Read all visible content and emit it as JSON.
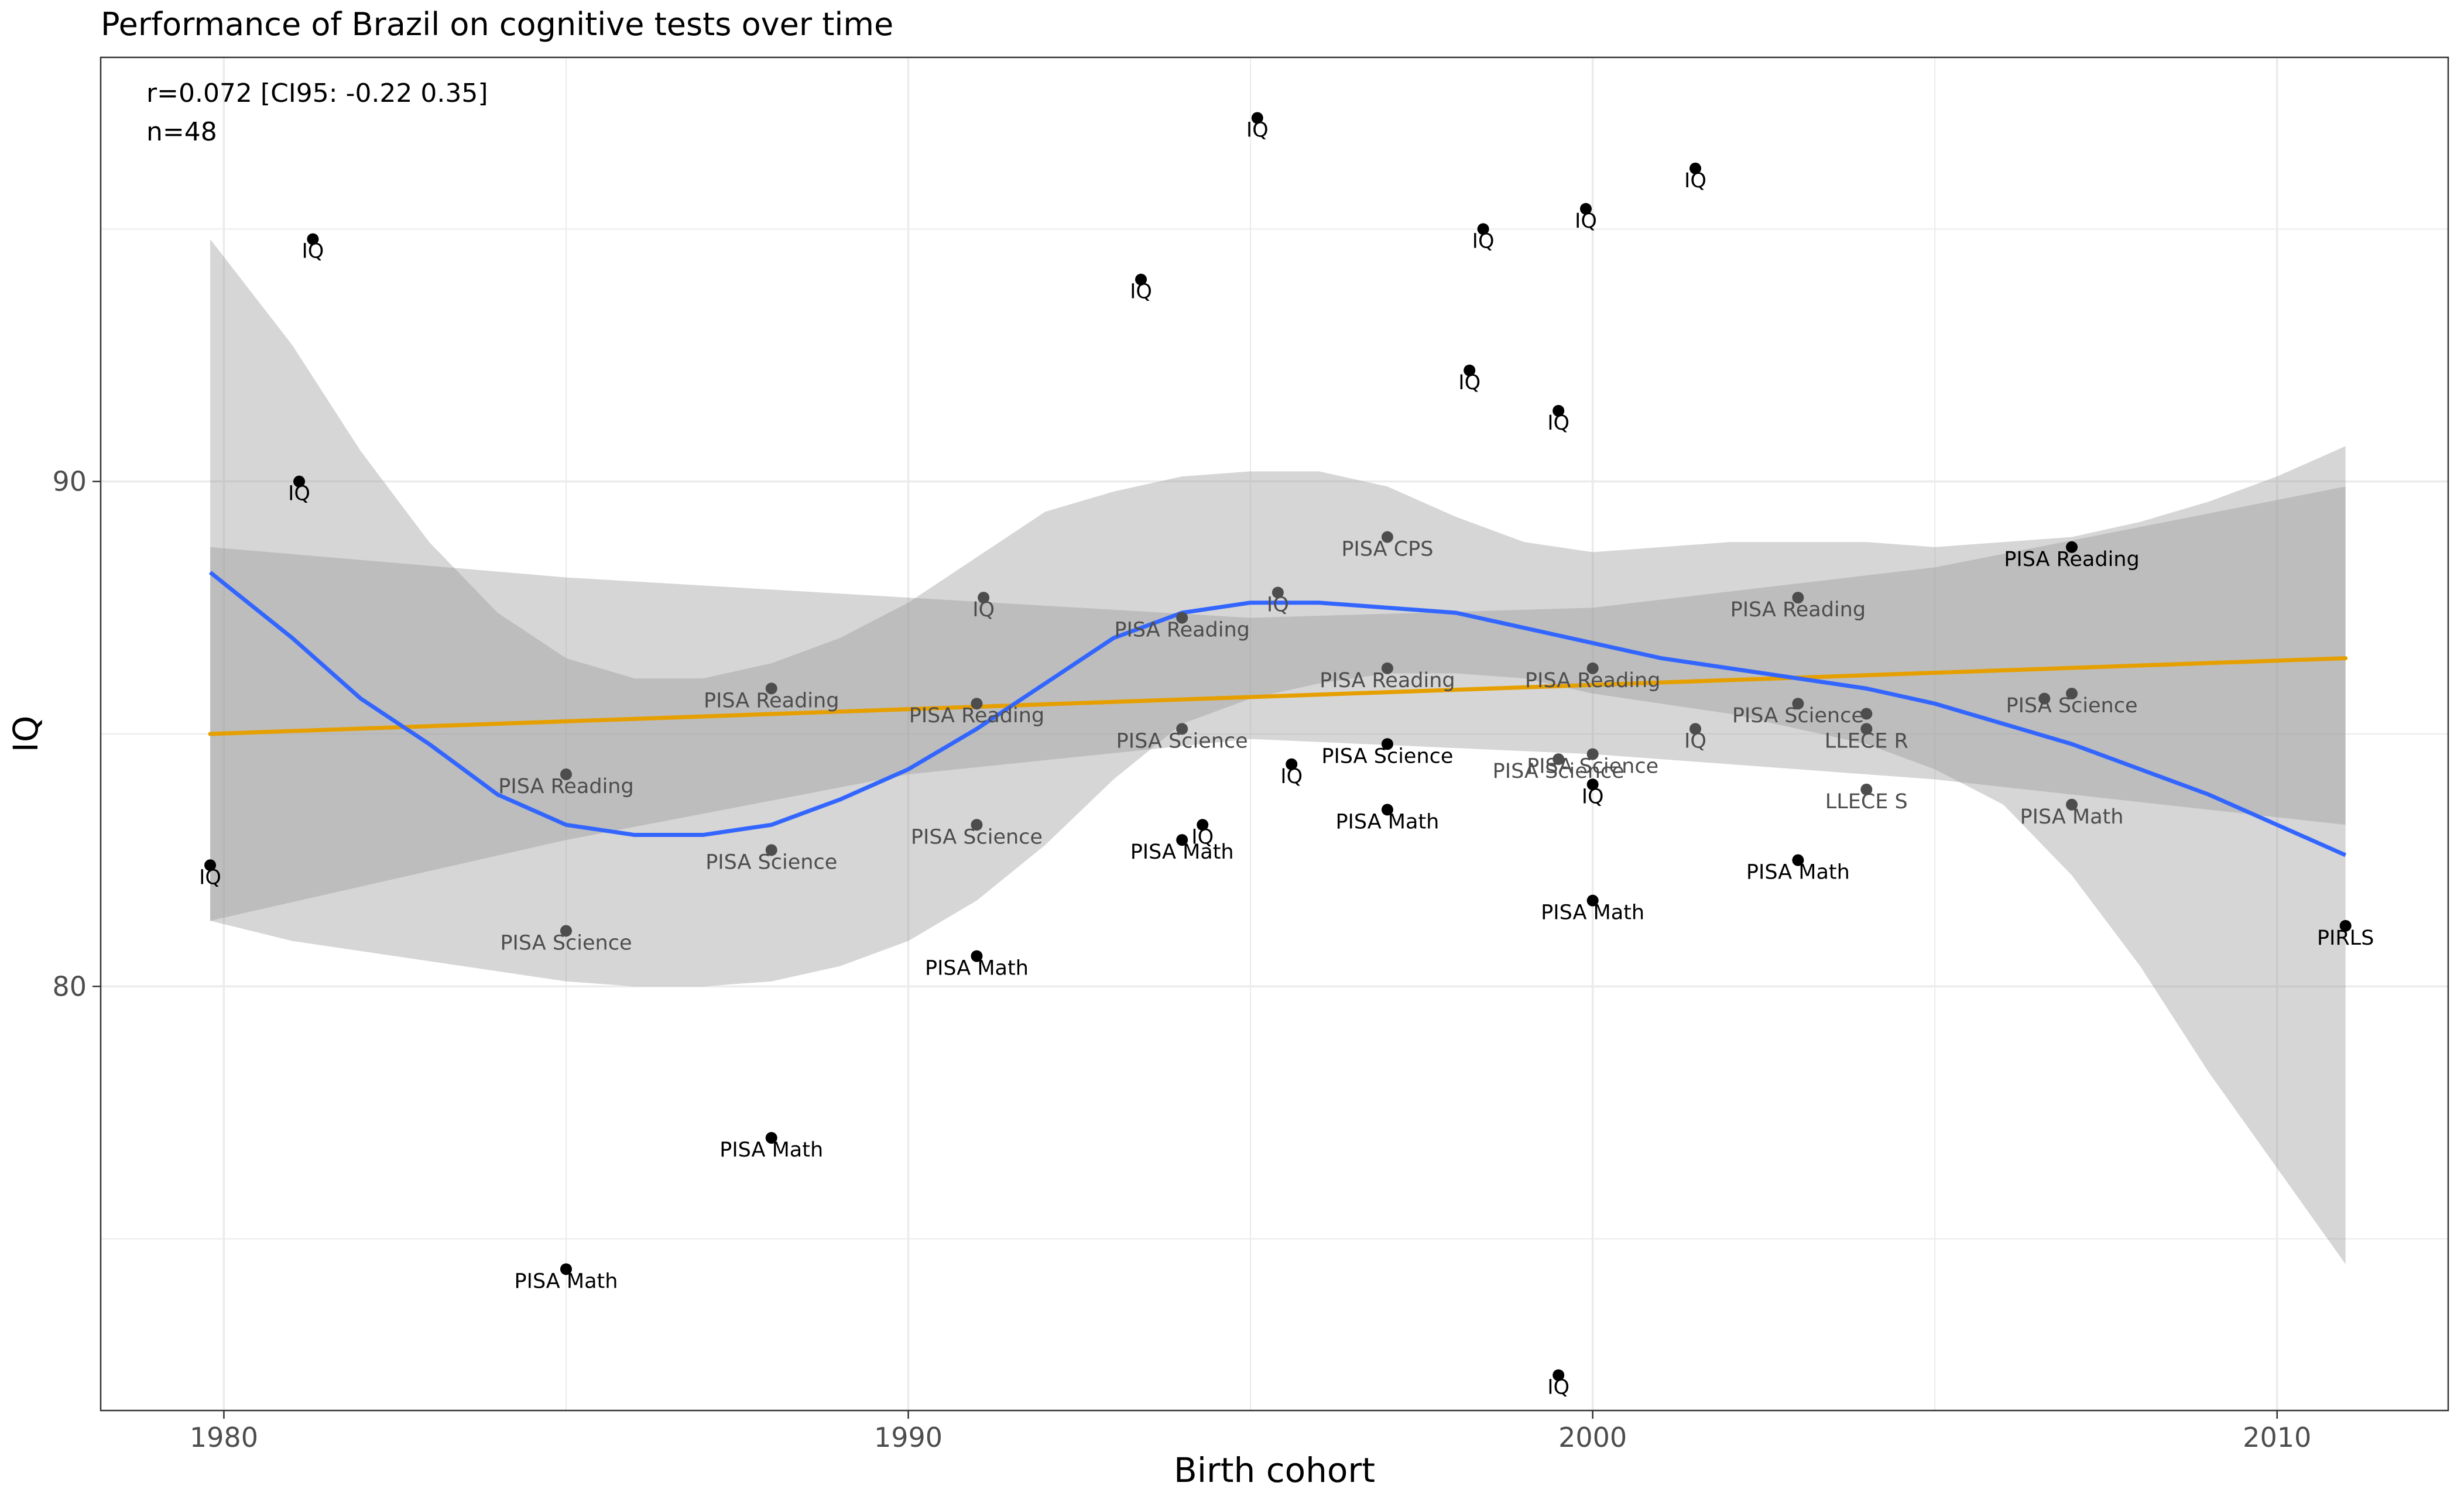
{
  "chart_data": {
    "type": "scatter",
    "title": "Performance of Brazil on cognitive tests over time",
    "xlabel": "Birth cohort",
    "ylabel": "IQ",
    "xlim": [
      1978.2,
      2012.5
    ],
    "ylim": [
      71.6,
      98.4
    ],
    "x_ticks": [
      1980,
      1990,
      2000,
      2010
    ],
    "y_ticks": [
      80,
      90
    ],
    "grid": true,
    "annotations": [
      "r=0.072 [CI95: -0.22 0.35]",
      "n=48"
    ],
    "points": [
      {
        "x": 1979.8,
        "y": 82.4,
        "label": "IQ",
        "shade": "dark"
      },
      {
        "x": 1981.1,
        "y": 90.0,
        "label": "IQ",
        "shade": "dark"
      },
      {
        "x": 1981.3,
        "y": 94.8,
        "label": "IQ",
        "shade": "dark"
      },
      {
        "x": 1985.0,
        "y": 84.2,
        "label": "PISA Reading",
        "shade": "mid"
      },
      {
        "x": 1985.0,
        "y": 81.1,
        "label": "PISA Science",
        "shade": "mid"
      },
      {
        "x": 1985.0,
        "y": 74.4,
        "label": "PISA Math",
        "shade": "dark"
      },
      {
        "x": 1988.0,
        "y": 85.9,
        "label": "PISA Reading",
        "shade": "mid"
      },
      {
        "x": 1988.0,
        "y": 82.7,
        "label": "PISA Science",
        "shade": "mid"
      },
      {
        "x": 1988.0,
        "y": 77.0,
        "label": "PISA Math",
        "shade": "dark"
      },
      {
        "x": 1991.0,
        "y": 85.6,
        "label": "PISA Reading",
        "shade": "mid"
      },
      {
        "x": 1991.0,
        "y": 83.2,
        "label": "PISA Science",
        "shade": "mid"
      },
      {
        "x": 1991.0,
        "y": 80.6,
        "label": "PISA Math",
        "shade": "dark"
      },
      {
        "x": 1991.1,
        "y": 87.7,
        "label": "IQ",
        "shade": "mid"
      },
      {
        "x": 1993.4,
        "y": 94.0,
        "label": "IQ",
        "shade": "dark"
      },
      {
        "x": 1994.0,
        "y": 87.3,
        "label": "PISA Reading",
        "shade": "mid"
      },
      {
        "x": 1994.0,
        "y": 85.1,
        "label": "PISA Science",
        "shade": "mid"
      },
      {
        "x": 1994.0,
        "y": 82.9,
        "label": "PISA Math",
        "shade": "dark"
      },
      {
        "x": 1994.3,
        "y": 83.2,
        "label": "IQ",
        "shade": "dark"
      },
      {
        "x": 1995.1,
        "y": 97.2,
        "label": "IQ",
        "shade": "dark"
      },
      {
        "x": 1995.4,
        "y": 87.8,
        "label": "IQ",
        "shade": "mid"
      },
      {
        "x": 1995.6,
        "y": 84.4,
        "label": "IQ",
        "shade": "dark"
      },
      {
        "x": 1997.0,
        "y": 88.9,
        "label": "PISA CPS",
        "shade": "mid"
      },
      {
        "x": 1997.0,
        "y": 86.3,
        "label": "PISA Reading",
        "shade": "mid"
      },
      {
        "x": 1997.0,
        "y": 84.8,
        "label": "PISA Science",
        "shade": "dark"
      },
      {
        "x": 1997.0,
        "y": 83.5,
        "label": "PISA Math",
        "shade": "dark"
      },
      {
        "x": 1998.2,
        "y": 92.2,
        "label": "IQ",
        "shade": "dark"
      },
      {
        "x": 1998.4,
        "y": 95.0,
        "label": "IQ",
        "shade": "dark"
      },
      {
        "x": 1999.5,
        "y": 91.4,
        "label": "IQ",
        "shade": "dark"
      },
      {
        "x": 1999.5,
        "y": 84.5,
        "label": "PISA Science",
        "shade": "mid"
      },
      {
        "x": 1999.5,
        "y": 72.3,
        "label": "IQ",
        "shade": "dark"
      },
      {
        "x": 1999.9,
        "y": 95.4,
        "label": "IQ",
        "shade": "dark"
      },
      {
        "x": 2000.0,
        "y": 86.3,
        "label": "PISA Reading",
        "shade": "mid"
      },
      {
        "x": 2000.0,
        "y": 84.6,
        "label": "PISA Science",
        "shade": "mid"
      },
      {
        "x": 2000.0,
        "y": 84.0,
        "label": "IQ",
        "shade": "dark"
      },
      {
        "x": 2000.0,
        "y": 81.7,
        "label": "PISA Math",
        "shade": "dark"
      },
      {
        "x": 2001.5,
        "y": 96.2,
        "label": "IQ",
        "shade": "dark"
      },
      {
        "x": 2001.5,
        "y": 85.1,
        "label": "IQ",
        "shade": "mid"
      },
      {
        "x": 2003.0,
        "y": 87.7,
        "label": "PISA Reading",
        "shade": "mid"
      },
      {
        "x": 2003.0,
        "y": 85.6,
        "label": "PISA Science",
        "shade": "mid"
      },
      {
        "x": 2003.0,
        "y": 82.5,
        "label": "PISA Math",
        "shade": "dark"
      },
      {
        "x": 2004.0,
        "y": 85.4,
        "label": "",
        "shade": "mid"
      },
      {
        "x": 2004.0,
        "y": 85.1,
        "label": "LLECE R",
        "shade": "mid"
      },
      {
        "x": 2004.0,
        "y": 83.9,
        "label": "LLECE S",
        "shade": "mid"
      },
      {
        "x": 2006.6,
        "y": 85.7,
        "label": "",
        "shade": "mid"
      },
      {
        "x": 2007.0,
        "y": 88.7,
        "label": "PISA Reading",
        "shade": "dark"
      },
      {
        "x": 2007.0,
        "y": 85.8,
        "label": "PISA Science",
        "shade": "mid"
      },
      {
        "x": 2007.0,
        "y": 83.6,
        "label": "PISA Math",
        "shade": "mid"
      },
      {
        "x": 2011.0,
        "y": 81.2,
        "label": "PIRLS",
        "shade": "dark"
      }
    ],
    "linear_fit": {
      "x": [
        1979.8,
        2011.0
      ],
      "y": [
        85.0,
        86.5
      ]
    },
    "linear_band": {
      "x": [
        1979.8,
        1985,
        1990,
        1995,
        2000,
        2005,
        2011.0
      ],
      "lower": [
        81.3,
        82.9,
        84.2,
        84.9,
        84.6,
        84.1,
        83.2
      ],
      "upper": [
        88.7,
        88.1,
        87.7,
        87.3,
        87.5,
        88.3,
        89.9
      ]
    },
    "loess_fit": {
      "x": [
        1979.8,
        1981,
        1982,
        1983,
        1984,
        1985,
        1986,
        1987,
        1988,
        1989,
        1990,
        1991,
        1992,
        1993,
        1994,
        1995,
        1996,
        1997,
        1998,
        1999,
        2000,
        2001,
        2002,
        2003,
        2004,
        2005,
        2006,
        2007,
        2008,
        2009,
        2010,
        2011.0
      ],
      "y": [
        88.2,
        86.9,
        85.7,
        84.8,
        83.8,
        83.2,
        83.0,
        83.0,
        83.2,
        83.7,
        84.3,
        85.1,
        86.0,
        86.9,
        87.4,
        87.6,
        87.6,
        87.5,
        87.4,
        87.1,
        86.8,
        86.5,
        86.3,
        86.1,
        85.9,
        85.6,
        85.2,
        84.8,
        84.3,
        83.8,
        83.2,
        82.6
      ],
      "lower": [
        81.3,
        80.9,
        80.7,
        80.5,
        80.3,
        80.1,
        80.0,
        80.0,
        80.1,
        80.4,
        80.9,
        81.7,
        82.8,
        84.1,
        85.2,
        85.7,
        86.0,
        86.2,
        86.2,
        86.1,
        85.8,
        85.6,
        85.4,
        85.1,
        84.8,
        84.3,
        83.6,
        82.2,
        80.4,
        78.3,
        76.4,
        74.5
      ],
      "upper": [
        94.8,
        92.7,
        90.6,
        88.8,
        87.4,
        86.5,
        86.1,
        86.1,
        86.4,
        86.9,
        87.6,
        88.5,
        89.4,
        89.8,
        90.1,
        90.2,
        90.2,
        89.9,
        89.3,
        88.8,
        88.6,
        88.7,
        88.8,
        88.8,
        88.8,
        88.7,
        88.8,
        88.9,
        89.2,
        89.6,
        90.1,
        90.7
      ]
    },
    "colors": {
      "linear": "#E69F00",
      "loess": "#3366FF",
      "band": "#999999",
      "point_dark": "#000000",
      "point_mid": "#4d4d4d",
      "grid": "#ebebeb",
      "panel_border": "#333333"
    }
  }
}
